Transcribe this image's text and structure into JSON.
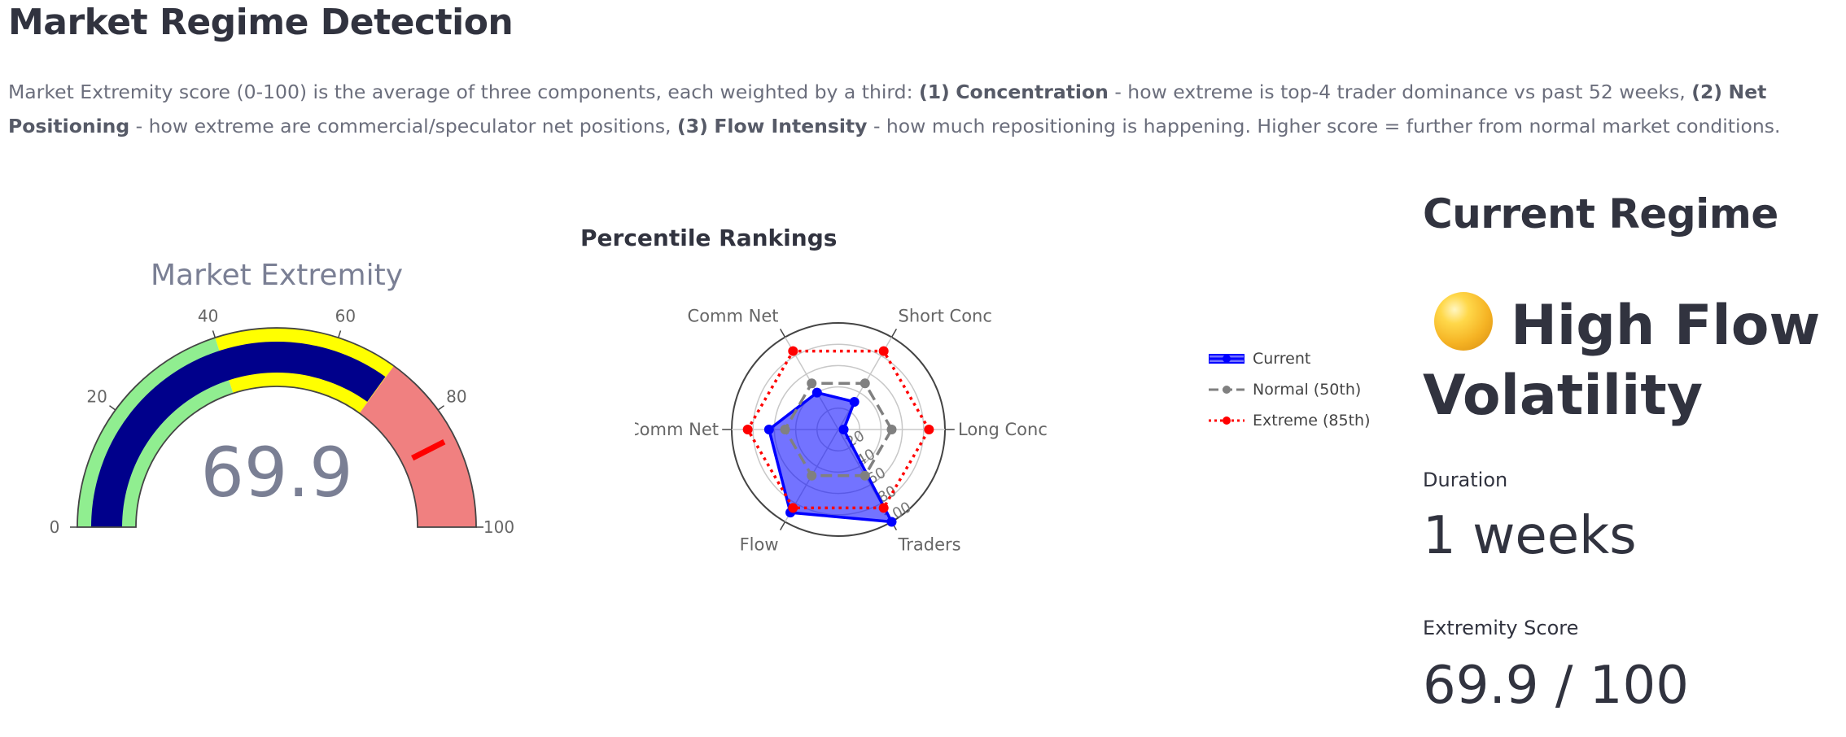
{
  "header": {
    "title": "Market Regime Detection"
  },
  "description": {
    "intro": "Market Extremity score (0-100) is the average of three components, each weighted by a third: ",
    "c1_num": "(1)",
    "c1_name": "Concentration",
    "c1_text": " - how extreme is top-4 trader dominance vs past 52 weeks, ",
    "c2_num": "(2)",
    "c2_name": "Net Positioning",
    "c2_text": " - how extreme are commercial/speculator net positions, ",
    "c3_num": "(3)",
    "c3_name": "Flow Intensity",
    "c3_text": " - how much repositioning is happening. Higher score = further from normal market conditions."
  },
  "gauge": {
    "title": "Market Extremity",
    "value": 69.9,
    "value_label": "69.9",
    "min": 0,
    "max": 100,
    "threshold": 85,
    "ticks": [
      "0",
      "20",
      "40",
      "60",
      "80",
      "100"
    ],
    "bands": [
      {
        "from": 0,
        "to": 40,
        "color": "#90ee90"
      },
      {
        "from": 40,
        "to": 70,
        "color": "#ffff00"
      },
      {
        "from": 70,
        "to": 100,
        "color": "#f08080"
      }
    ],
    "bar_color": "#00008b",
    "threshold_color": "#ff0000"
  },
  "chart_data": {
    "type": "radar",
    "title": "Percentile Rankings",
    "axes": [
      "Long Conc",
      "Short Conc",
      "Comm Net",
      "NonComm Net",
      "Flow",
      "Traders"
    ],
    "radial_ticks": [
      "20",
      "40",
      "60",
      "80",
      "100"
    ],
    "range": [
      0,
      100
    ],
    "series": [
      {
        "name": "Current",
        "values": [
          5,
          30,
          40,
          65,
          90,
          100
        ],
        "color": "#0000ff",
        "fill": "rgba(0,0,255,0.55)",
        "line": "solid"
      },
      {
        "name": "Normal (50th)",
        "values": [
          50,
          50,
          50,
          50,
          50,
          50
        ],
        "color": "#808080",
        "line": "dash"
      },
      {
        "name": "Extreme (85th)",
        "values": [
          85,
          85,
          85,
          85,
          85,
          85
        ],
        "color": "#ff0000",
        "line": "dot"
      }
    ],
    "legend_position": "right"
  },
  "regime": {
    "title": "Current Regime",
    "status": "High Flow Volatility",
    "icon": "yellow-circle-icon",
    "duration_label": "Duration",
    "duration_value": "1 weeks",
    "score_label": "Extremity Score",
    "score_value": "69.9 / 100"
  }
}
